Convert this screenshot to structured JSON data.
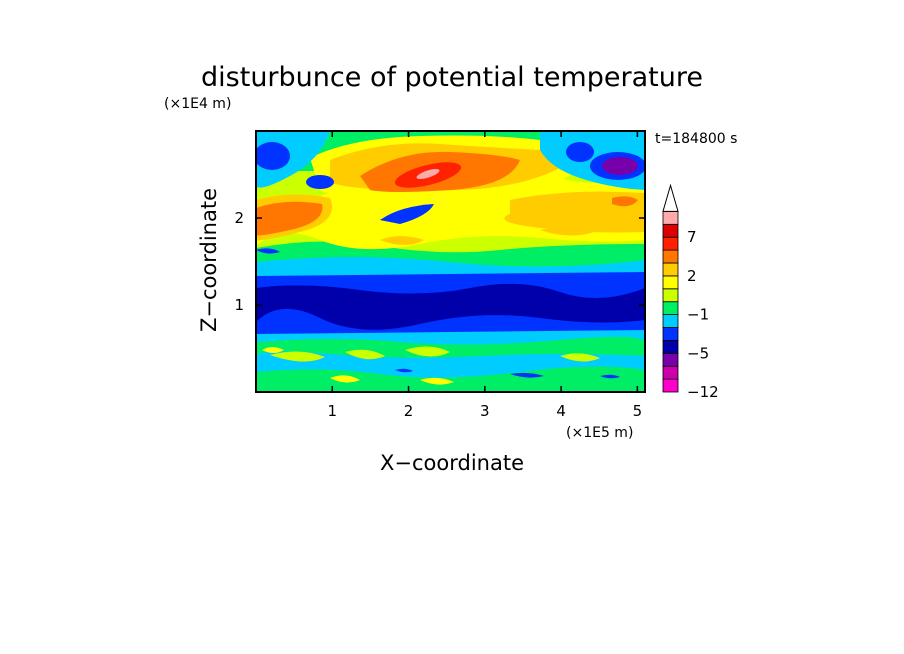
{
  "chart_data": {
    "type": "heatmap",
    "title": "disturbunce of potential temperature",
    "time_label": "t=184800 s",
    "xlabel": "X−coordinate",
    "ylabel": "Z−coordinate",
    "x_scale_label": "(×1E5 m)",
    "y_scale_label": "(×1E4 m)",
    "xlim": [
      0,
      5.1
    ],
    "ylim": [
      0,
      3.0
    ],
    "x_ticks": [
      "1",
      "2",
      "3",
      "4",
      "5"
    ],
    "y_ticks": [
      "1",
      "2"
    ],
    "colorbar_labels": [
      "7",
      "2",
      "−1",
      "−5",
      "−12"
    ],
    "colorbar_levels": [
      -12,
      -9,
      -7,
      -5,
      -3,
      -2,
      -1,
      0,
      1,
      2,
      3,
      5,
      7,
      9,
      11
    ],
    "colorbar_colors": [
      "#ff00cc",
      "#cc00aa",
      "#7700aa",
      "#0000aa",
      "#0033ff",
      "#00ccff",
      "#00ee66",
      "#ccff00",
      "#ffff00",
      "#ffcc00",
      "#ff7700",
      "#ff2200",
      "#dd0000",
      "#ffaaaa"
    ],
    "grid": false,
    "legend": "colorbar-right",
    "features": [
      {
        "kind": "band",
        "z": [
          1.2,
          1.3
        ],
        "value": -3
      },
      {
        "kind": "band",
        "z": [
          0.75,
          1.2
        ],
        "value": -5
      },
      {
        "kind": "band",
        "z": [
          0.45,
          0.75
        ],
        "value": -1
      },
      {
        "kind": "blob",
        "x": 2.3,
        "z": 2.45,
        "value": 8
      },
      {
        "kind": "blob",
        "x": 0.4,
        "z": 2.0,
        "value": 4
      },
      {
        "kind": "blob",
        "x": 4.7,
        "z": 2.6,
        "value": -9
      },
      {
        "kind": "blob",
        "x": 2.0,
        "z": 2.05,
        "value": -4
      }
    ]
  }
}
